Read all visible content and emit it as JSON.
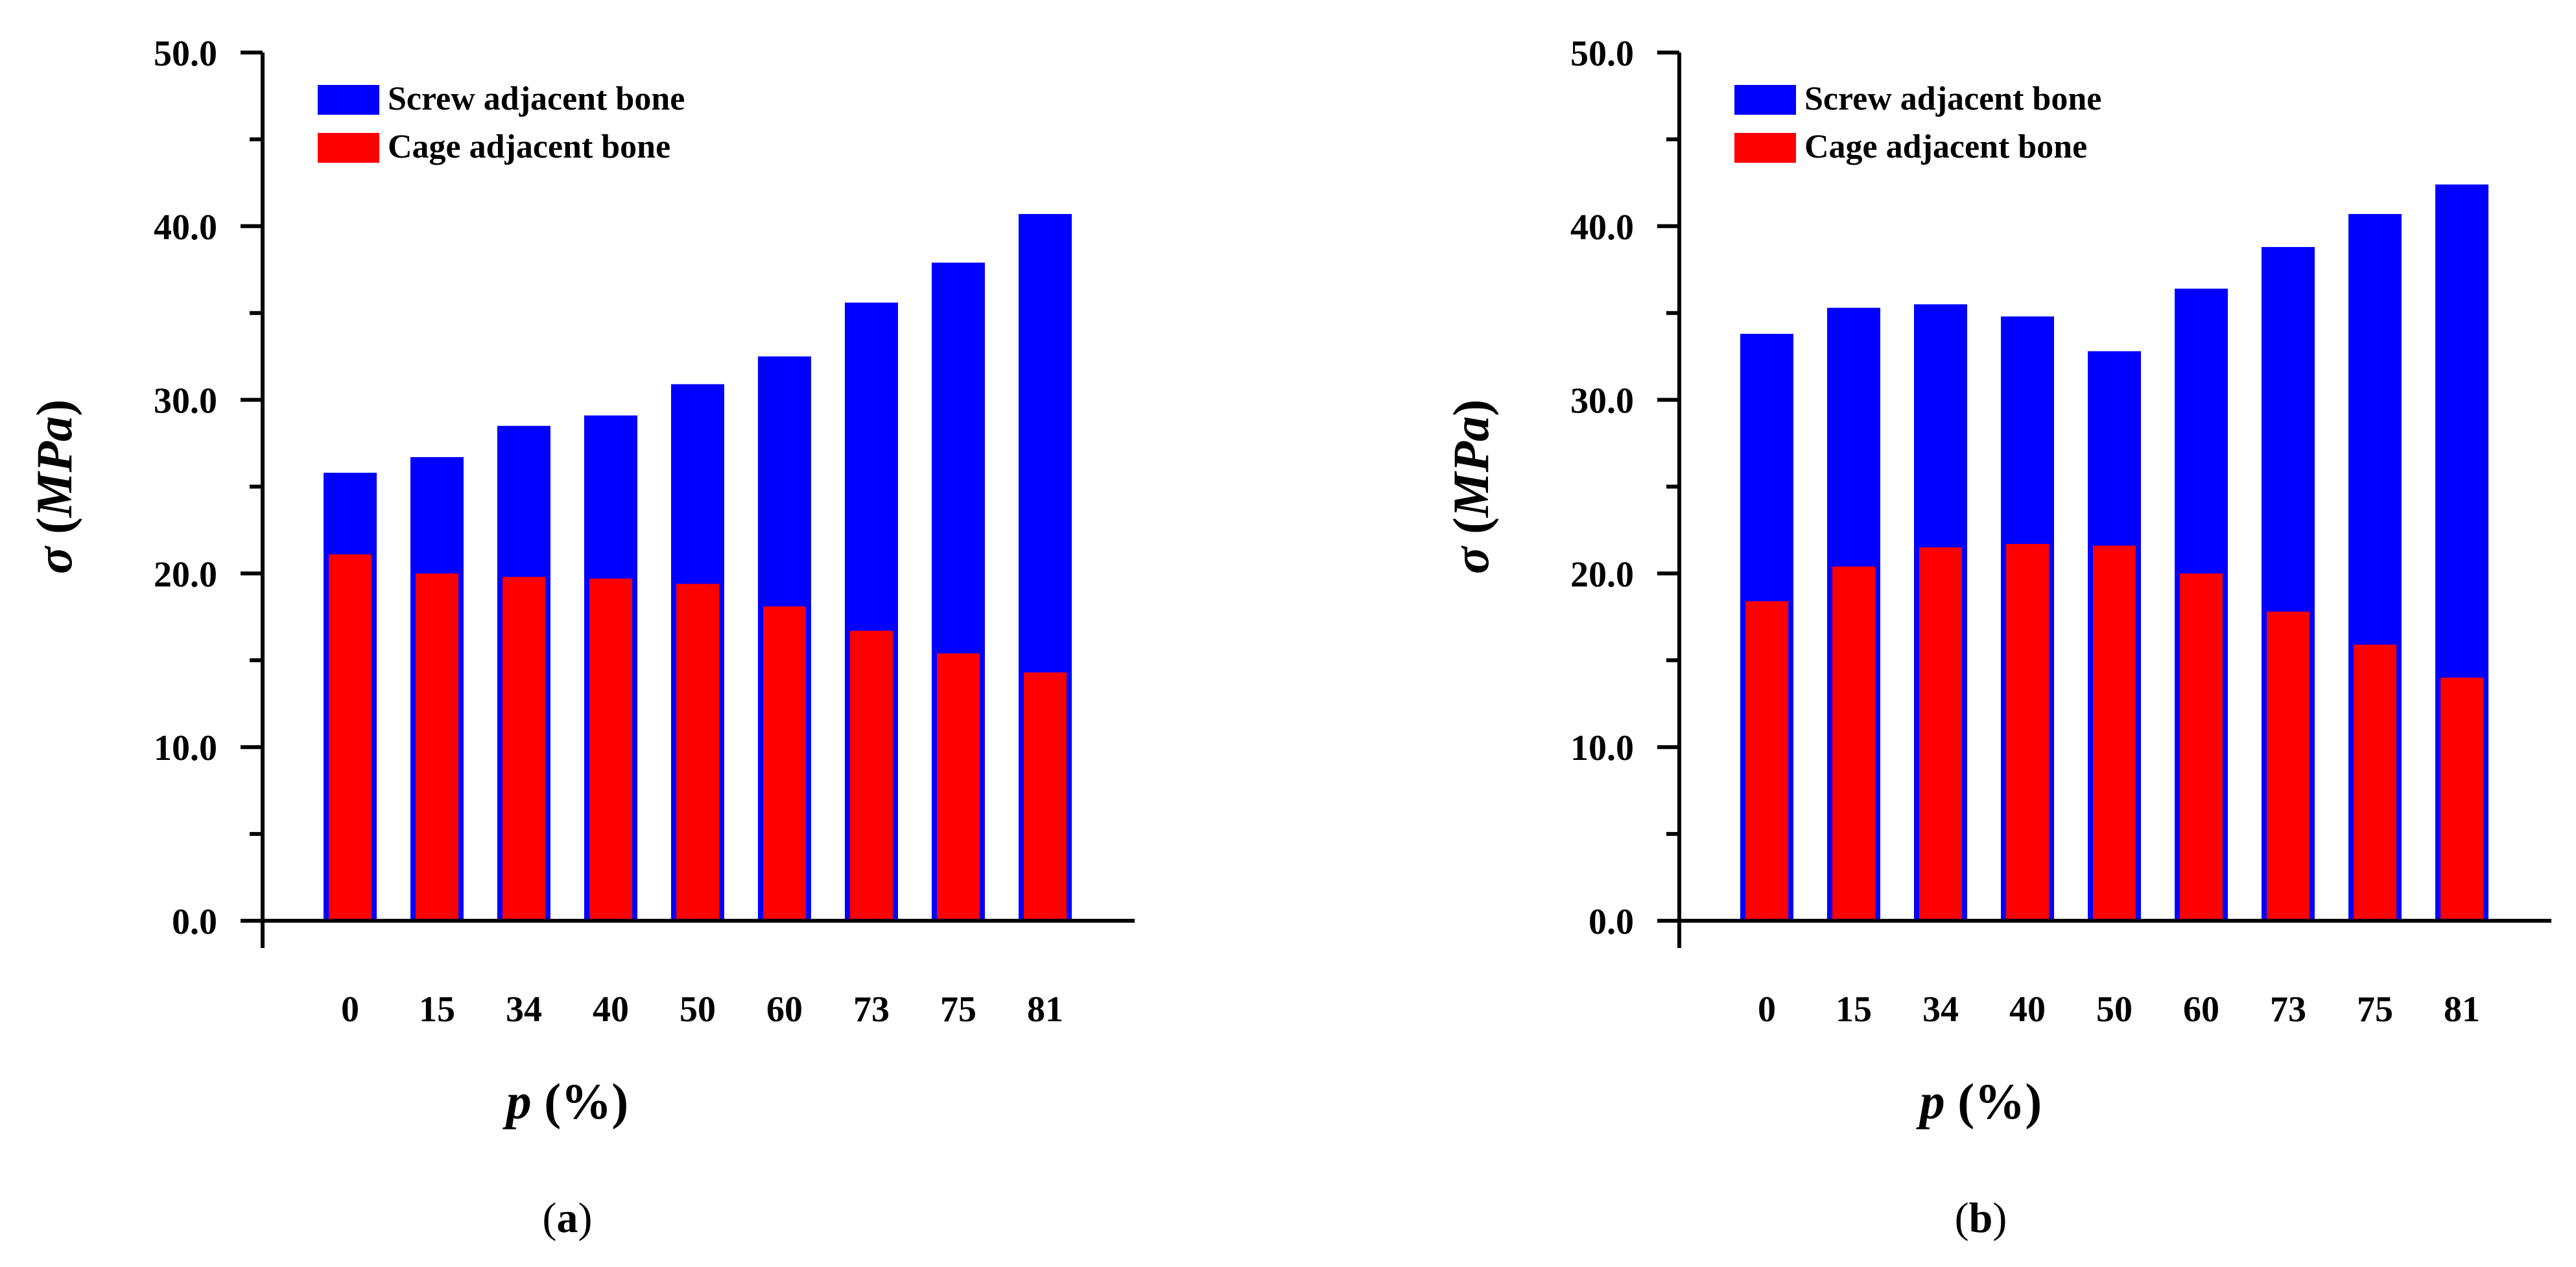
{
  "chart_data": [
    {
      "type": "bar",
      "panel_label": "(a)",
      "panel_letter": "a",
      "categories": [
        "0",
        "15",
        "34",
        "40",
        "50",
        "60",
        "73",
        "75",
        "81"
      ],
      "series": [
        {
          "name": "Screw adjacent bone",
          "color": "#0000ff",
          "values": [
            25.8,
            26.7,
            28.5,
            29.1,
            30.9,
            32.5,
            35.6,
            37.9,
            40.7
          ]
        },
        {
          "name": "Cage adjacent bone",
          "color": "#ff0000",
          "values": [
            21.1,
            20.0,
            19.8,
            19.7,
            19.4,
            18.1,
            16.7,
            15.4,
            14.3
          ]
        }
      ],
      "xlabel": "p (%)",
      "xlabel_var": "p",
      "xlabel_unit": "(%)",
      "ylabel": "σ (MPa)",
      "ylabel_var": "σ",
      "ylabel_unit": "MPa",
      "ylim": [
        0,
        50
      ],
      "yticks": [
        "0.0",
        "10.0",
        "20.0",
        "30.0",
        "40.0",
        "50.0"
      ],
      "bar_mode": "overlapped",
      "grid": false,
      "legend_position": "top-left"
    },
    {
      "type": "bar",
      "panel_label": "(b)",
      "panel_letter": "b",
      "categories": [
        "0",
        "15",
        "34",
        "40",
        "50",
        "60",
        "73",
        "75",
        "81"
      ],
      "series": [
        {
          "name": "Screw adjacent bone",
          "color": "#0000ff",
          "values": [
            33.8,
            35.3,
            35.5,
            34.8,
            32.8,
            36.4,
            38.8,
            40.7,
            42.4
          ]
        },
        {
          "name": "Cage adjacent bone",
          "color": "#ff0000",
          "values": [
            18.4,
            20.4,
            21.5,
            21.7,
            21.6,
            20.0,
            17.8,
            15.9,
            14.0
          ]
        }
      ],
      "xlabel": "p (%)",
      "xlabel_var": "p",
      "xlabel_unit": "(%)",
      "ylabel": "σ (MPa)",
      "ylabel_var": "σ",
      "ylabel_unit": "MPa",
      "ylim": [
        0,
        50
      ],
      "yticks": [
        "0.0",
        "10.0",
        "20.0",
        "30.0",
        "40.0",
        "50.0"
      ],
      "bar_mode": "overlapped",
      "grid": false,
      "legend_position": "top-left"
    }
  ]
}
